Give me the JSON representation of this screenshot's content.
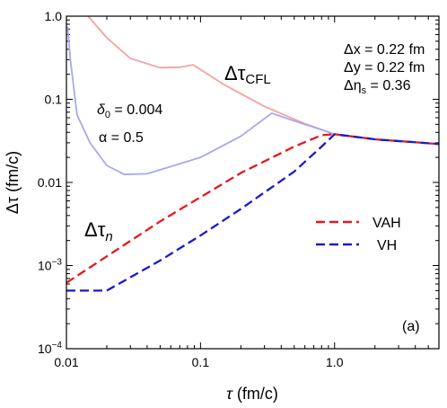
{
  "chart_data": {
    "type": "line",
    "xscale": "log",
    "yscale": "log",
    "xlim": [
      0.01,
      6.0
    ],
    "ylim": [
      0.0001,
      1.0
    ],
    "xlabel_sym": "τ",
    "xlabel_unit": " (fm/c)",
    "ylabel_sym": "Δτ",
    "ylabel_unit": " (fm/c)",
    "xticks": [
      {
        "value": 0.01,
        "label": "0.01"
      },
      {
        "value": 0.1,
        "label": "0.1"
      },
      {
        "value": 1.0,
        "label": "1.0"
      }
    ],
    "yticks": [
      {
        "value": 1.0,
        "label": "1.0"
      },
      {
        "value": 0.1,
        "label": "0.1"
      },
      {
        "value": 0.01,
        "label": "0.01"
      },
      {
        "value": 0.001,
        "label_base": "10",
        "label_exp": "−3"
      },
      {
        "value": 0.0001,
        "label_base": "10",
        "label_exp": "−4"
      }
    ],
    "series": [
      {
        "name": "VAH",
        "color": "#e41a1c",
        "dash": "dashed",
        "points": [
          [
            0.01,
            0.00062
          ],
          [
            0.05,
            0.0034
          ],
          [
            0.2,
            0.013
          ],
          [
            0.5,
            0.027
          ],
          [
            0.8,
            0.037
          ],
          [
            1.0,
            0.038
          ],
          [
            2.0,
            0.033
          ],
          [
            6.0,
            0.029
          ]
        ]
      },
      {
        "name": "VH",
        "color": "#1a1acc",
        "dash": "dashed",
        "points": [
          [
            0.01,
            0.0005
          ],
          [
            0.02,
            0.0005
          ],
          [
            0.05,
            0.00115
          ],
          [
            0.1,
            0.0023
          ],
          [
            0.2,
            0.0048
          ],
          [
            0.5,
            0.0135
          ],
          [
            0.8,
            0.027
          ],
          [
            1.0,
            0.038
          ],
          [
            2.0,
            0.033
          ],
          [
            6.0,
            0.029
          ]
        ]
      },
      {
        "name": "CFL",
        "color": "#f4a3a3",
        "dash": "solid",
        "points": [
          [
            0.0145,
            1.0
          ],
          [
            0.02,
            0.55
          ],
          [
            0.03,
            0.31
          ],
          [
            0.05,
            0.24
          ],
          [
            0.07,
            0.243
          ],
          [
            0.088,
            0.26
          ],
          [
            0.15,
            0.15
          ],
          [
            0.3,
            0.082
          ],
          [
            0.6,
            0.051
          ],
          [
            1.0,
            0.038
          ],
          [
            2.0,
            0.033
          ],
          [
            6.0,
            0.029
          ]
        ]
      },
      {
        "name": "n",
        "color": "#a8a8ee",
        "dash": "solid",
        "points": [
          [
            0.0102,
            0.75
          ],
          [
            0.0107,
            0.3
          ],
          [
            0.012,
            0.065
          ],
          [
            0.015,
            0.03
          ],
          [
            0.02,
            0.016
          ],
          [
            0.027,
            0.0125
          ],
          [
            0.04,
            0.0127
          ],
          [
            0.1,
            0.02
          ],
          [
            0.2,
            0.036
          ],
          [
            0.34,
            0.068
          ],
          [
            0.5,
            0.055
          ],
          [
            0.8,
            0.043
          ],
          [
            1.0,
            0.038
          ]
        ]
      }
    ],
    "legend": [
      {
        "label": "VAH",
        "color": "#e41a1c"
      },
      {
        "label": "VH",
        "color": "#1a1acc"
      }
    ],
    "annotations": {
      "dtau_cfl_main": "Δτ",
      "dtau_cfl_sub": "CFL",
      "dtau_n_main": "Δτ",
      "dtau_n_sub": "n",
      "delta0_sym": "δ",
      "delta0_sub": "0",
      "delta0_val": " = 0.004",
      "alpha_text": "α = 0.5",
      "dx_text": "Δx = 0.22 fm",
      "dy_text": "Δy = 0.22 fm",
      "deta_main": "Δη",
      "deta_sub": "s",
      "deta_val": " = 0.36",
      "panel_label": "(a)"
    }
  }
}
